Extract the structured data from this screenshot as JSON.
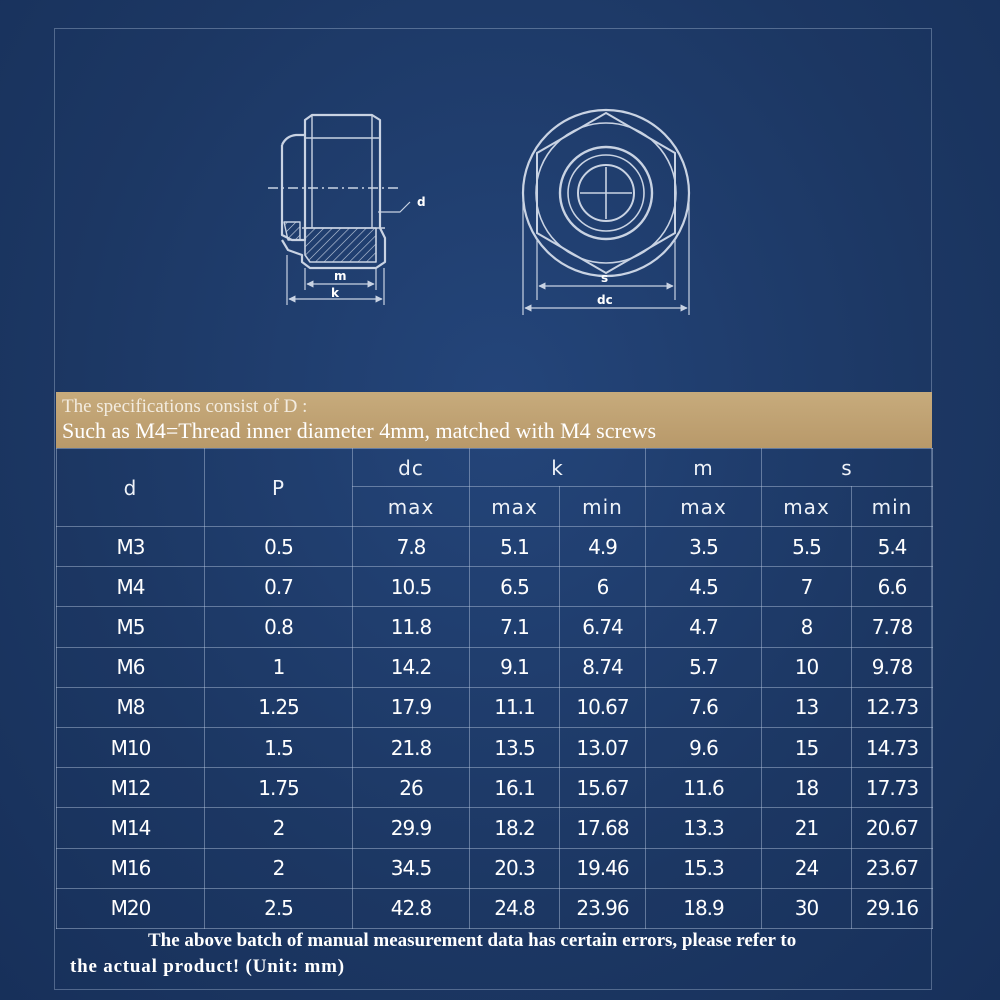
{
  "drawing": {
    "side_labels": {
      "d": "d",
      "m": "m",
      "k": "k"
    },
    "front_labels": {
      "s": "s",
      "dc": "dc"
    }
  },
  "banner": {
    "line1": "The specifications consist of D :",
    "line2": "Such as M4=Thread inner diameter 4mm, matched with M4 screws"
  },
  "table": {
    "headers": {
      "d": "d",
      "p": "P",
      "dc": "dc",
      "k": "k",
      "m": "m",
      "s": "s"
    },
    "subheaders": {
      "dc_max": "max",
      "k_max": "max",
      "k_min": "min",
      "m_max": "max",
      "s_max": "max",
      "s_min": "min"
    },
    "rows": [
      [
        "M3",
        "0.5",
        "7.8",
        "5.1",
        "4.9",
        "3.5",
        "5.5",
        "5.4"
      ],
      [
        "M4",
        "0.7",
        "10.5",
        "6.5",
        "6",
        "4.5",
        "7",
        "6.6"
      ],
      [
        "M5",
        "0.8",
        "11.8",
        "7.1",
        "6.74",
        "4.7",
        "8",
        "7.78"
      ],
      [
        "M6",
        "1",
        "14.2",
        "9.1",
        "8.74",
        "5.7",
        "10",
        "9.78"
      ],
      [
        "M8",
        "1.25",
        "17.9",
        "11.1",
        "10.67",
        "7.6",
        "13",
        "12.73"
      ],
      [
        "M10",
        "1.5",
        "21.8",
        "13.5",
        "13.07",
        "9.6",
        "15",
        "14.73"
      ],
      [
        "M12",
        "1.75",
        "26",
        "16.1",
        "15.67",
        "11.6",
        "18",
        "17.73"
      ],
      [
        "M14",
        "2",
        "29.9",
        "18.2",
        "17.68",
        "13.3",
        "21",
        "20.67"
      ],
      [
        "M16",
        "2",
        "34.5",
        "20.3",
        "19.46",
        "15.3",
        "24",
        "23.67"
      ],
      [
        "M20",
        "2.5",
        "42.8",
        "24.8",
        "23.96",
        "18.9",
        "30",
        "29.16"
      ]
    ]
  },
  "note": {
    "line1": "The above batch of manual measurement data has certain errors, please refer to",
    "line2": "the actual product! (Unit: mm)"
  },
  "colors": {
    "background": "#1d3a66",
    "banner": "#c0a273",
    "line": "#c9d3e3"
  }
}
